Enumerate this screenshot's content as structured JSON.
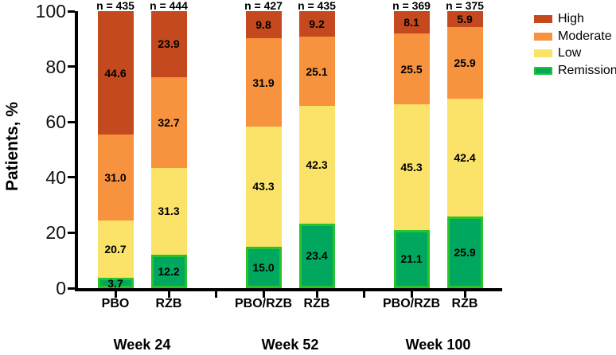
{
  "figure": {
    "background": "#ffffff"
  },
  "y_axis": {
    "title": "Patients, %",
    "tick_labels": [
      "0",
      "20",
      "40",
      "60",
      "80",
      "100"
    ],
    "tick_values": [
      0,
      20,
      40,
      60,
      80,
      100
    ]
  },
  "legend": {
    "items": [
      {
        "label": "High",
        "color": "#C4491E"
      },
      {
        "label": "Moderate",
        "color": "#F7923F"
      },
      {
        "label": "Low",
        "color": "#FBE268"
      },
      {
        "label": "Remission",
        "color": "#00A85F",
        "border_color": "#2BC32B"
      }
    ]
  },
  "chart_data": {
    "type": "bar",
    "stacked": true,
    "percent": true,
    "title": "",
    "xlabel": "",
    "ylabel": "Patients, %",
    "ylim": [
      0,
      100
    ],
    "yticks": [
      0,
      20,
      40,
      60,
      80,
      100
    ],
    "grid": false,
    "legend_position": "top-right",
    "legend_entries": [
      "High",
      "Moderate",
      "Low",
      "Remission"
    ],
    "stack_order_bottom_to_top": [
      "Remission",
      "Low",
      "Moderate",
      "High"
    ],
    "series_colors": {
      "High": "#C4491E",
      "Moderate": "#F7923F",
      "Low": "#FBE268",
      "Remission": "#00A85F"
    },
    "remission_border_color": "#2BC32B",
    "groups": [
      {
        "label": "Week 24",
        "bars": [
          {
            "x_label": "PBO",
            "n_label": "n = 435",
            "segments": [
              {
                "name": "Remission",
                "value": 3.7,
                "label": "3.7"
              },
              {
                "name": "Low",
                "value": 20.7,
                "label": "20.7"
              },
              {
                "name": "Moderate",
                "value": 31.0,
                "label": "31.0"
              },
              {
                "name": "High",
                "value": 44.6,
                "label": "44.6"
              }
            ]
          },
          {
            "x_label": "RZB",
            "n_label": "n = 444",
            "segments": [
              {
                "name": "Remission",
                "value": 12.2,
                "label": "12.2"
              },
              {
                "name": "Low",
                "value": 31.3,
                "label": "31.3"
              },
              {
                "name": "Moderate",
                "value": 32.7,
                "label": "32.7"
              },
              {
                "name": "High",
                "value": 23.9,
                "label": "23.9"
              }
            ]
          }
        ]
      },
      {
        "label": "Week 52",
        "bars": [
          {
            "x_label": "PBO/RZB",
            "n_label": "n = 427",
            "segments": [
              {
                "name": "Remission",
                "value": 15.0,
                "label": "15.0"
              },
              {
                "name": "Low",
                "value": 43.3,
                "label": "43.3"
              },
              {
                "name": "Moderate",
                "value": 31.9,
                "label": "31.9"
              },
              {
                "name": "High",
                "value": 9.8,
                "label": "9.8"
              }
            ]
          },
          {
            "x_label": "RZB",
            "n_label": "n = 435",
            "segments": [
              {
                "name": "Remission",
                "value": 23.4,
                "label": "23.4"
              },
              {
                "name": "Low",
                "value": 42.3,
                "label": "42.3"
              },
              {
                "name": "Moderate",
                "value": 25.1,
                "label": "25.1"
              },
              {
                "name": "High",
                "value": 9.2,
                "label": "9.2"
              }
            ]
          }
        ]
      },
      {
        "label": "Week 100",
        "bars": [
          {
            "x_label": "PBO/RZB",
            "n_label": "n = 369",
            "segments": [
              {
                "name": "Remission",
                "value": 21.1,
                "label": "21.1"
              },
              {
                "name": "Low",
                "value": 45.3,
                "label": "45.3"
              },
              {
                "name": "Moderate",
                "value": 25.5,
                "label": "25.5"
              },
              {
                "name": "High",
                "value": 8.1,
                "label": "8.1"
              }
            ]
          },
          {
            "x_label": "RZB",
            "n_label": "n = 375",
            "segments": [
              {
                "name": "Remission",
                "value": 25.9,
                "label": "25.9"
              },
              {
                "name": "Low",
                "value": 42.4,
                "label": "42.4"
              },
              {
                "name": "Moderate",
                "value": 25.9,
                "label": "25.9"
              },
              {
                "name": "High",
                "value": 5.9,
                "label": "5.9"
              }
            ]
          }
        ]
      }
    ]
  }
}
